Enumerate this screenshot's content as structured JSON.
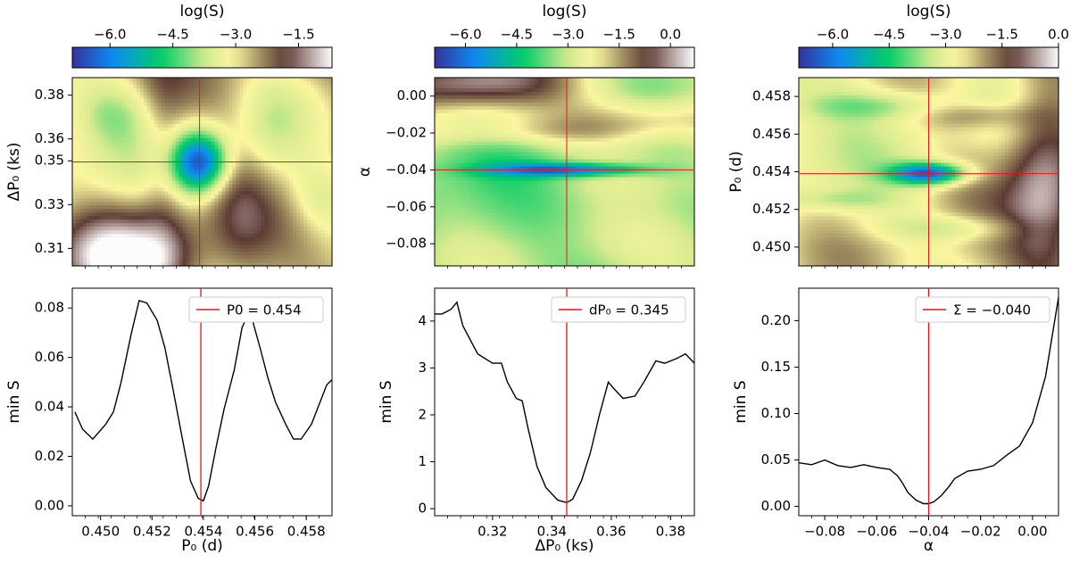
{
  "colors": {
    "colormap": [
      "#333399",
      "#0d8df5",
      "#00cc66",
      "#d9eb8f",
      "#fbf6a0",
      "#9d8a5e",
      "#5c3b34",
      "#a8918e",
      "#fdfcfc"
    ],
    "marker": "#e8141c",
    "curve": "#000000"
  },
  "chart_data": [
    {
      "type": "heatmap",
      "colorbar": {
        "title": "log(S)",
        "range": [
          -6.9,
          -0.7
        ],
        "ticks": [
          -6.0,
          -4.5,
          -3.0,
          -1.5
        ]
      },
      "x": {
        "range": [
          0.449,
          0.459
        ],
        "ticks": [],
        "label": ""
      },
      "y": {
        "range": [
          0.302,
          0.388
        ],
        "ticks": [
          0.31,
          0.33,
          0.35,
          0.36,
          0.38
        ],
        "label": "ΔP₀ (ks)"
      },
      "crosshair": {
        "x": 0.4539,
        "y": 0.3495
      },
      "field": {
        "base": -2.8,
        "angle": 10,
        "features": [
          {
            "x": 0.4539,
            "y": 0.3495,
            "sx": 0.00075,
            "sy": 0.0098,
            "a": -3.6
          },
          {
            "x": 0.4565,
            "y": 0.358,
            "sx": 0.001,
            "sy": 0.02,
            "a": -0.8
          },
          {
            "x": 0.4585,
            "y": 0.333,
            "sx": 0.0009,
            "sy": 0.012,
            "a": -1.0
          },
          {
            "x": 0.4505,
            "y": 0.372,
            "sx": 0.001,
            "sy": 0.01,
            "a": -0.8
          },
          {
            "x": 0.451,
            "y": 0.305,
            "sx": 0.002,
            "sy": 0.015,
            "a": 2.2
          },
          {
            "x": 0.4525,
            "y": 0.345,
            "sx": 0.0006,
            "sy": 0.04,
            "a": 0.6
          },
          {
            "x": 0.4555,
            "y": 0.325,
            "sx": 0.0008,
            "sy": 0.03,
            "a": 0.6
          }
        ]
      }
    },
    {
      "type": "heatmap",
      "colorbar": {
        "title": "log(S)",
        "range": [
          -6.9,
          0.7
        ],
        "ticks": [
          -6.0,
          -4.5,
          -3.0,
          -1.5,
          0.0
        ]
      },
      "x": {
        "range": [
          0.3005,
          0.388
        ],
        "ticks": [],
        "label": ""
      },
      "y": {
        "range": [
          -0.092,
          0.01
        ],
        "ticks": [
          0.0,
          -0.02,
          -0.04,
          -0.06,
          -0.08
        ],
        "label": "α"
      },
      "crosshair": {
        "x": 0.345,
        "y": -0.04
      },
      "field": {
        "base": -3.2,
        "angle": -30,
        "features": [
          {
            "x": 0.345,
            "y": -0.04,
            "sx": 0.018,
            "sy": 0.0025,
            "a": -3.0
          },
          {
            "x": 0.31,
            "y": 0.008,
            "sx": 0.025,
            "sy": 0.012,
            "a": 3.5
          },
          {
            "x": 0.375,
            "y": -0.012,
            "sx": 0.025,
            "sy": 0.008,
            "a": 1.6
          },
          {
            "x": 0.33,
            "y": -0.02,
            "sx": 0.03,
            "sy": 0.006,
            "a": 1.2
          },
          {
            "x": 0.37,
            "y": -0.06,
            "sx": 0.02,
            "sy": 0.01,
            "a": -0.6
          },
          {
            "x": 0.32,
            "y": -0.07,
            "sx": 0.02,
            "sy": 0.015,
            "a": -0.4
          }
        ]
      }
    },
    {
      "type": "heatmap",
      "colorbar": {
        "title": "log(S)",
        "range": [
          -6.9,
          0.0
        ],
        "ticks": [
          -6.0,
          -4.5,
          -3.0,
          -1.5,
          0.0
        ]
      },
      "x": {
        "range": [
          -0.09,
          0.01
        ],
        "ticks": [],
        "label": ""
      },
      "y": {
        "range": [
          0.449,
          0.459
        ],
        "ticks": [
          0.458,
          0.456,
          0.454,
          0.452,
          0.45
        ],
        "label": "P₀ (d)"
      },
      "crosshair": {
        "x": -0.04,
        "y": 0.4539
      },
      "field": {
        "base": -2.6,
        "angle": -35,
        "features": [
          {
            "x": -0.04,
            "y": 0.4539,
            "sx": 0.01,
            "sy": 0.0004,
            "a": -3.8
          },
          {
            "x": 0.005,
            "y": 0.454,
            "sx": 0.01,
            "sy": 0.004,
            "a": 1.8
          },
          {
            "x": -0.06,
            "y": 0.4575,
            "sx": 0.02,
            "sy": 0.0005,
            "a": -1.0
          },
          {
            "x": -0.03,
            "y": 0.451,
            "sx": 0.02,
            "sy": 0.0005,
            "a": -1.0
          },
          {
            "x": -0.075,
            "y": 0.4525,
            "sx": 0.015,
            "sy": 0.0004,
            "a": -0.8
          },
          {
            "x": -0.02,
            "y": 0.457,
            "sx": 0.015,
            "sy": 0.0005,
            "a": 0.9
          }
        ]
      }
    },
    {
      "type": "line",
      "x": [
        0.449,
        0.4493,
        0.4497,
        0.4502,
        0.4505,
        0.4508,
        0.4512,
        0.4515,
        0.4518,
        0.4522,
        0.4525,
        0.4528,
        0.4532,
        0.4535,
        0.4538,
        0.454,
        0.4542,
        0.4545,
        0.4548,
        0.4552,
        0.4555,
        0.4558,
        0.4562,
        0.4565,
        0.4568,
        0.4572,
        0.4575,
        0.4578,
        0.4582,
        0.4585,
        0.4588,
        0.459
      ],
      "y": [
        0.038,
        0.031,
        0.027,
        0.033,
        0.038,
        0.05,
        0.07,
        0.083,
        0.082,
        0.075,
        0.064,
        0.048,
        0.026,
        0.01,
        0.003,
        0.002,
        0.008,
        0.024,
        0.039,
        0.055,
        0.072,
        0.079,
        0.064,
        0.052,
        0.042,
        0.033,
        0.027,
        0.027,
        0.033,
        0.041,
        0.049,
        0.051
      ],
      "xlabel": "P₀ (d)",
      "ylabel": "min S",
      "xlim": [
        0.4489,
        0.459
      ],
      "ylim": [
        -0.004,
        0.088
      ],
      "xticks": [
        0.45,
        0.452,
        0.454,
        0.456,
        0.458
      ],
      "yticks": [
        0.0,
        0.02,
        0.04,
        0.06,
        0.08
      ],
      "marker_x": 0.4539,
      "legend": "P0 = 0.454"
    },
    {
      "type": "line",
      "x": [
        0.3005,
        0.303,
        0.306,
        0.308,
        0.31,
        0.315,
        0.32,
        0.323,
        0.325,
        0.328,
        0.33,
        0.332,
        0.335,
        0.338,
        0.342,
        0.345,
        0.347,
        0.35,
        0.353,
        0.356,
        0.359,
        0.361,
        0.364,
        0.368,
        0.371,
        0.375,
        0.378,
        0.382,
        0.385,
        0.388
      ],
      "y": [
        4.15,
        4.15,
        4.25,
        4.4,
        3.9,
        3.3,
        3.1,
        3.1,
        2.7,
        2.35,
        2.3,
        1.7,
        0.9,
        0.45,
        0.18,
        0.13,
        0.2,
        0.6,
        1.2,
        2.0,
        2.7,
        2.55,
        2.35,
        2.4,
        2.7,
        3.15,
        3.1,
        3.2,
        3.3,
        3.1
      ],
      "xlabel": "ΔP₀ (ks)",
      "ylabel": "min S",
      "xlim": [
        0.3005,
        0.388
      ],
      "ylim": [
        -0.15,
        4.7
      ],
      "xticks": [
        0.32,
        0.34,
        0.36,
        0.38
      ],
      "yticks": [
        0,
        1,
        2,
        3,
        4
      ],
      "marker_x": 0.345,
      "legend": "dP₀ = 0.345"
    },
    {
      "type": "line",
      "x": [
        -0.09,
        -0.085,
        -0.08,
        -0.075,
        -0.07,
        -0.065,
        -0.06,
        -0.055,
        -0.052,
        -0.05,
        -0.048,
        -0.045,
        -0.042,
        -0.04,
        -0.038,
        -0.035,
        -0.032,
        -0.03,
        -0.025,
        -0.02,
        -0.015,
        -0.01,
        -0.005,
        0.0,
        0.005,
        0.01
      ],
      "y": [
        0.047,
        0.045,
        0.05,
        0.044,
        0.042,
        0.045,
        0.042,
        0.04,
        0.033,
        0.025,
        0.015,
        0.007,
        0.003,
        0.003,
        0.005,
        0.012,
        0.022,
        0.03,
        0.038,
        0.04,
        0.044,
        0.055,
        0.065,
        0.09,
        0.14,
        0.225
      ],
      "xlabel": "α",
      "ylabel": "min S",
      "xlim": [
        -0.09,
        0.01
      ],
      "ylim": [
        -0.01,
        0.235
      ],
      "xticks": [
        -0.08,
        -0.06,
        -0.04,
        -0.02,
        0.0
      ],
      "yticks": [
        0.0,
        0.05,
        0.1,
        0.15,
        0.2
      ],
      "marker_x": -0.04,
      "legend": "Σ = −0.040"
    }
  ]
}
